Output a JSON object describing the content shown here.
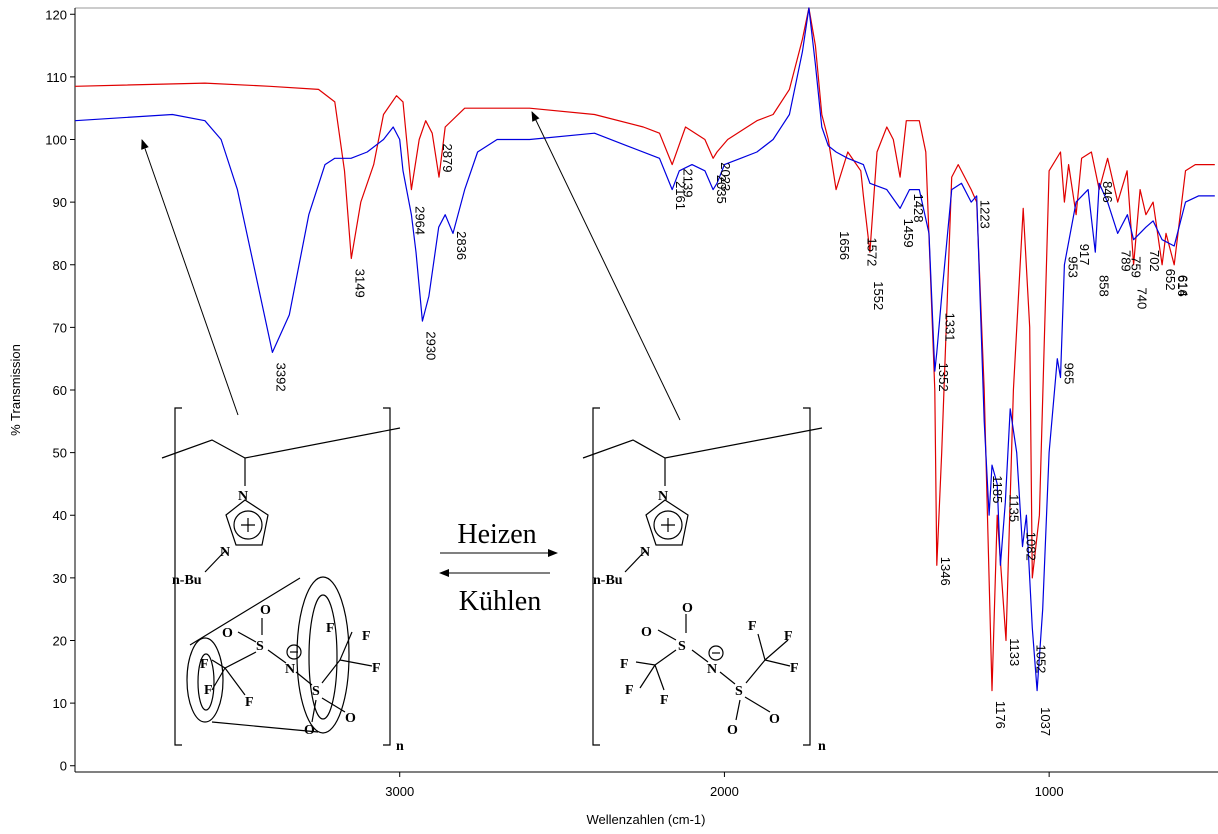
{
  "chart_data": {
    "type": "line",
    "xlabel": "Wellenzahlen (cm-1)",
    "ylabel": "% Transmission",
    "xlim": [
      4000,
      480
    ],
    "ylim": [
      -1,
      121
    ],
    "xticks": [
      3000,
      2000,
      1000
    ],
    "yticks": [
      0,
      10,
      20,
      30,
      40,
      50,
      60,
      70,
      80,
      90,
      100,
      110,
      120
    ],
    "series": [
      {
        "color": "#e00000",
        "x": [
          4000,
          3600,
          3400,
          3250,
          3200,
          3170,
          3149,
          3120,
          3080,
          3050,
          3010,
          2990,
          2964,
          2940,
          2920,
          2900,
          2879,
          2860,
          2800,
          2600,
          2400,
          2250,
          2200,
          2161,
          2120,
          2060,
          2035,
          2023,
          1990,
          1900,
          1850,
          1800,
          1760,
          1740,
          1720,
          1700,
          1680,
          1656,
          1620,
          1580,
          1572,
          1552,
          1530,
          1500,
          1480,
          1459,
          1440,
          1400,
          1380,
          1352,
          1346,
          1331,
          1300,
          1280,
          1240,
          1223,
          1200,
          1176,
          1160,
          1133,
          1110,
          1080,
          1060,
          1052,
          1030,
          1000,
          965,
          953,
          940,
          917,
          900,
          870,
          858,
          846,
          820,
          789,
          760,
          740,
          720,
          702,
          680,
          652,
          640,
          615,
          580,
          550,
          490
        ],
        "values": [
          108.5,
          109,
          108.5,
          108,
          106,
          95,
          81,
          90,
          96,
          104,
          107,
          106,
          92,
          100,
          103,
          101,
          94,
          102,
          105,
          105,
          104,
          102,
          101,
          96,
          102,
          100,
          97,
          98,
          100,
          103,
          104,
          108,
          116,
          121,
          115,
          104,
          100,
          92,
          98,
          95,
          91,
          82,
          98,
          102,
          100,
          94,
          103,
          103,
          98,
          60,
          32,
          50,
          94,
          96,
          92,
          90,
          60,
          12,
          40,
          20,
          60,
          89,
          70,
          30,
          40,
          95,
          98,
          90,
          96,
          88,
          97,
          98,
          95,
          92,
          97,
          90,
          95,
          80,
          92,
          88,
          90,
          80,
          85,
          80,
          95,
          96,
          96
        ]
      },
      {
        "color": "#0000e0",
        "x": [
          4000,
          3700,
          3600,
          3550,
          3500,
          3450,
          3392,
          3340,
          3280,
          3230,
          3200,
          3150,
          3100,
          3050,
          3020,
          3000,
          2990,
          2964,
          2950,
          2930,
          2910,
          2880,
          2860,
          2836,
          2800,
          2760,
          2700,
          2600,
          2400,
          2300,
          2200,
          2161,
          2139,
          2100,
          2060,
          2035,
          2023,
          2000,
          1950,
          1900,
          1850,
          1800,
          1760,
          1740,
          1720,
          1700,
          1680,
          1656,
          1620,
          1572,
          1552,
          1500,
          1459,
          1430,
          1400,
          1370,
          1352,
          1346,
          1331,
          1300,
          1270,
          1240,
          1223,
          1200,
          1185,
          1176,
          1160,
          1150,
          1135,
          1120,
          1100,
          1082,
          1070,
          1052,
          1037,
          1020,
          1000,
          975,
          965,
          953,
          917,
          880,
          858,
          846,
          820,
          789,
          759,
          740,
          702,
          680,
          652,
          615,
          580,
          540,
          490
        ],
        "values": [
          103,
          104,
          103,
          100,
          92,
          80,
          66,
          72,
          88,
          96,
          97,
          97,
          98,
          100,
          102,
          100,
          95,
          88,
          82,
          71,
          75,
          86,
          88,
          85,
          92,
          98,
          100,
          100,
          101,
          99,
          97,
          92,
          95,
          96,
          95,
          92,
          93,
          96,
          97,
          98,
          100,
          104,
          114,
          121,
          112,
          102,
          99,
          98,
          97,
          96,
          93,
          92,
          89,
          92,
          92,
          85,
          63,
          66,
          75,
          92,
          93,
          90,
          91,
          55,
          40,
          48,
          45,
          32,
          42,
          57,
          50,
          35,
          40,
          22,
          12,
          25,
          50,
          65,
          62,
          80,
          90,
          92,
          82,
          93,
          90,
          85,
          88,
          84,
          86,
          87,
          84,
          83,
          90,
          91,
          91
        ]
      }
    ],
    "peak_labels": [
      {
        "x": 3392,
        "y": 65
      },
      {
        "x": 3149,
        "y": 80
      },
      {
        "x": 2964,
        "y": 90
      },
      {
        "x": 2930,
        "y": 70
      },
      {
        "x": 2879,
        "y": 100
      },
      {
        "x": 2836,
        "y": 86
      },
      {
        "x": 2161,
        "y": 94
      },
      {
        "x": 2139,
        "y": 96
      },
      {
        "x": 2035,
        "y": 95
      },
      {
        "x": 2023,
        "y": 97
      },
      {
        "x": 1656,
        "y": 86
      },
      {
        "x": 1572,
        "y": 85
      },
      {
        "x": 1552,
        "y": 78
      },
      {
        "x": 1459,
        "y": 88
      },
      {
        "x": 1428,
        "y": 92
      },
      {
        "x": 1223,
        "y": 91
      },
      {
        "x": 1352,
        "y": 65
      },
      {
        "x": 1331,
        "y": 73
      },
      {
        "x": 1346,
        "y": 34
      },
      {
        "x": 1185,
        "y": 47
      },
      {
        "x": 1135,
        "y": 44
      },
      {
        "x": 1176,
        "y": 11
      },
      {
        "x": 1133,
        "y": 21
      },
      {
        "x": 1082,
        "y": 38
      },
      {
        "x": 1052,
        "y": 20
      },
      {
        "x": 1037,
        "y": 10
      },
      {
        "x": 965,
        "y": 65
      },
      {
        "x": 953,
        "y": 82
      },
      {
        "x": 917,
        "y": 84
      },
      {
        "x": 858,
        "y": 79
      },
      {
        "x": 846,
        "y": 94
      },
      {
        "x": 789,
        "y": 83
      },
      {
        "x": 759,
        "y": 82
      },
      {
        "x": 740,
        "y": 77
      },
      {
        "x": 702,
        "y": 83
      },
      {
        "x": 652,
        "y": 80
      },
      {
        "x": 616,
        "y": 79
      },
      {
        "x": 614,
        "y": 79
      }
    ],
    "reaction": {
      "forward": "Heizen",
      "backward": "Kühlen"
    },
    "atoms": {
      "nitrogen": "N",
      "butyl": "n-Bu",
      "oxygen": "O",
      "sulfur": "S",
      "fluorine": "F",
      "repeat": "n"
    }
  }
}
